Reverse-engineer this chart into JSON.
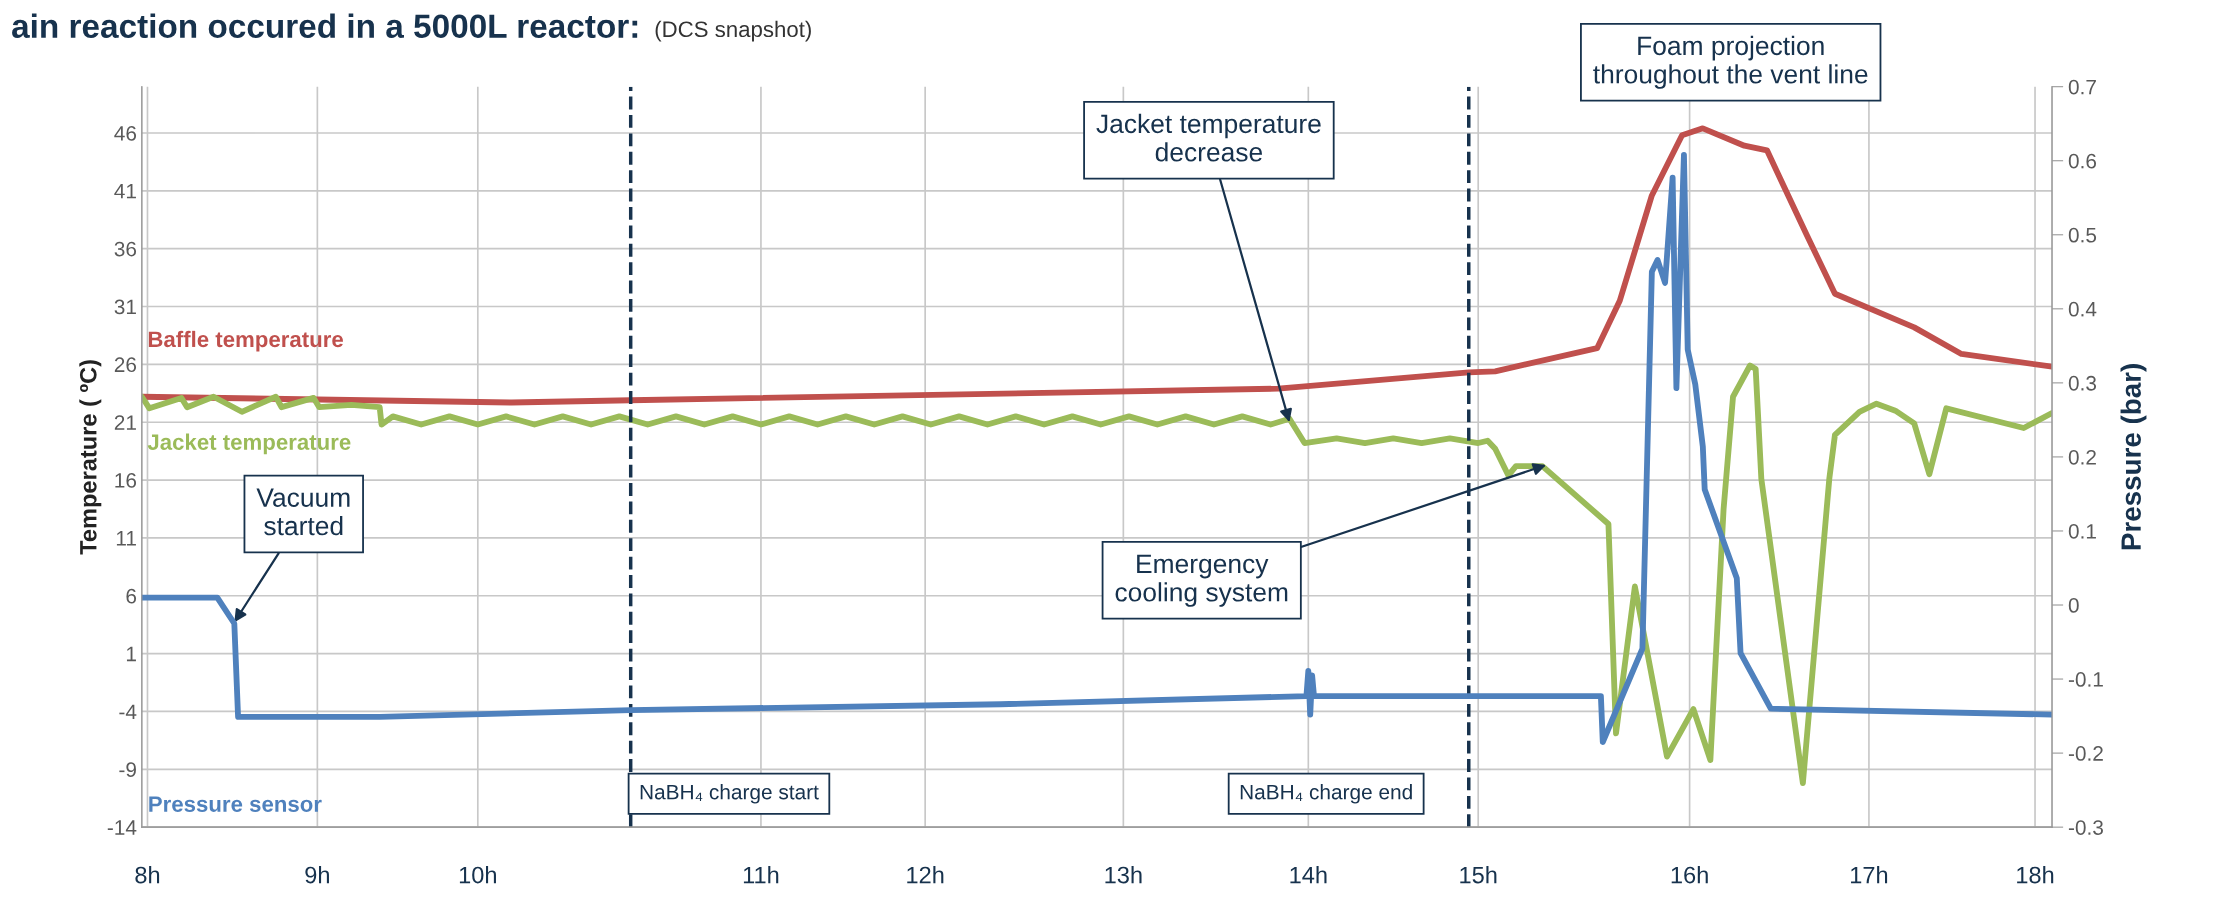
{
  "chart_data": {
    "type": "line",
    "title": "ain reaction occured in a 5000L reactor:",
    "subtitle": "(DCS snapshot)",
    "ylabel": "Temperature ( ºC)",
    "y2label": "Pressure (bar)",
    "xlim": [
      7.97,
      18.09
    ],
    "xticks": [
      {
        "value": 8,
        "label": "8h"
      },
      {
        "value": 8.9,
        "label": "9h"
      },
      {
        "value": 9.75,
        "label": "10h"
      },
      {
        "value": 11.25,
        "label": "11h"
      },
      {
        "value": 12.12,
        "label": "12h"
      },
      {
        "value": 13.17,
        "label": "13h"
      },
      {
        "value": 14.15,
        "label": "14h"
      },
      {
        "value": 15.05,
        "label": "15h"
      },
      {
        "value": 16.17,
        "label": "16h"
      },
      {
        "value": 17.12,
        "label": "17h"
      },
      {
        "value": 18,
        "label": "18h"
      }
    ],
    "ylim": [
      -14,
      50
    ],
    "yticks": [
      -14,
      -9,
      -4,
      1,
      6,
      11,
      16,
      21,
      26,
      31,
      36,
      41,
      46
    ],
    "y2lim": [
      -0.3,
      0.7
    ],
    "y2ticks": [
      -0.3,
      -0.2,
      -0.1,
      0,
      0.1,
      0.2,
      0.3,
      0.4,
      0.5,
      0.6,
      0.7
    ],
    "grid": true,
    "legend": false,
    "marker": "none",
    "line_style": "solid",
    "series": [
      {
        "name": "Baffle temperature",
        "color": "#c0504d",
        "x": [
          7.97,
          9.93,
          10.56,
          13.99,
          15.0,
          15.14,
          15.68,
          15.8,
          15.97,
          16.13,
          16.24,
          16.46,
          16.58,
          16.79,
          16.94,
          17.36,
          17.61,
          18.09
        ],
        "values": [
          23.2,
          22.7,
          22.9,
          23.9,
          25.3,
          25.4,
          27.4,
          31.5,
          40.6,
          45.8,
          46.4,
          44.9,
          44.5,
          37.2,
          32.1,
          29.2,
          26.9,
          25.8
        ]
      },
      {
        "name": "Jacket temperature",
        "color": "#9bbb59",
        "x": [
          7.97,
          8.01,
          8.18,
          8.21,
          8.35,
          8.5,
          8.68,
          8.71,
          8.88,
          8.91,
          9.08,
          9.23,
          9.24,
          9.3,
          9.45,
          9.6,
          9.75,
          9.9,
          10.05,
          10.2,
          10.35,
          10.5,
          10.65,
          10.8,
          10.95,
          11.1,
          11.25,
          11.4,
          11.55,
          11.7,
          11.85,
          12.0,
          12.15,
          12.3,
          12.45,
          12.6,
          12.75,
          12.9,
          13.05,
          13.2,
          13.35,
          13.5,
          13.65,
          13.8,
          13.95,
          14.05,
          14.13,
          14.3,
          14.45,
          14.6,
          14.75,
          14.9,
          15.05,
          15.1,
          15.14,
          15.21,
          15.25,
          15.39,
          15.74,
          15.78,
          15.88,
          16.05,
          16.19,
          16.28,
          16.35,
          16.4,
          16.49,
          16.52,
          16.55,
          16.77,
          16.91,
          16.94,
          17.07,
          17.16,
          17.26,
          17.36,
          17.44,
          17.53,
          17.94,
          18.09
        ],
        "values": [
          23.2,
          22.2,
          23.1,
          22.3,
          23.2,
          21.9,
          23.2,
          22.3,
          23.1,
          22.3,
          22.5,
          22.3,
          20.8,
          21.5,
          20.8,
          21.5,
          20.8,
          21.5,
          20.8,
          21.5,
          20.8,
          21.5,
          20.8,
          21.5,
          20.8,
          21.5,
          20.8,
          21.5,
          20.8,
          21.5,
          20.8,
          21.5,
          20.8,
          21.5,
          20.8,
          21.5,
          20.8,
          21.5,
          20.8,
          21.5,
          20.8,
          21.5,
          20.8,
          21.5,
          20.8,
          21.3,
          19.2,
          19.6,
          19.2,
          19.6,
          19.2,
          19.6,
          19.2,
          19.4,
          18.7,
          16.4,
          17.2,
          17.2,
          12.2,
          -5.9,
          6.8,
          -7.9,
          -3.8,
          -8.2,
          13.5,
          23.2,
          25.9,
          25.6,
          16.1,
          -10.2,
          16.1,
          19.9,
          21.9,
          22.6,
          22.0,
          20.9,
          16.5,
          22.2,
          20.5,
          21.8
        ]
      },
      {
        "name": "Pressure sensor",
        "color": "#4f81bd",
        "axis": "y2",
        "x": [
          7.97,
          8.37,
          8.46,
          8.48,
          9.23,
          10.56,
          12.52,
          14.14,
          14.15,
          14.16,
          14.17,
          14.18,
          15.7,
          15.71,
          15.92,
          15.97,
          16.0,
          16.04,
          16.08,
          16.1,
          16.14,
          16.16,
          16.2,
          16.24,
          16.25,
          16.42,
          16.44,
          16.6,
          18.09
        ],
        "values": [
          0.01,
          0.01,
          -0.025,
          -0.151,
          -0.151,
          -0.142,
          -0.134,
          -0.123,
          -0.089,
          -0.148,
          -0.095,
          -0.123,
          -0.123,
          -0.185,
          -0.059,
          0.45,
          0.466,
          0.435,
          0.577,
          0.293,
          0.608,
          0.345,
          0.298,
          0.214,
          0.156,
          0.036,
          -0.065,
          -0.14,
          -0.148
        ]
      }
    ],
    "ref_lines": [
      {
        "axis": "x",
        "value": 10.56,
        "label": "NaBH₄ charge start",
        "color": "#17324d",
        "line_style": "dashed"
      },
      {
        "axis": "x",
        "value": 15.0,
        "label": "NaBH₄ charge end",
        "color": "#17324d",
        "line_style": "dashed"
      }
    ],
    "annotations": [
      {
        "text": "Vacuum\nstarted",
        "x": 8.46,
        "y": 3.7
      },
      {
        "text": "Jacket temperature\ndecrease",
        "x": 14.05,
        "y": 21.0
      },
      {
        "text": "Emergency\ncooling system",
        "x": 15.41,
        "y": 17.3
      },
      "Foam projection\nthroughout the vent line"
    ]
  }
}
